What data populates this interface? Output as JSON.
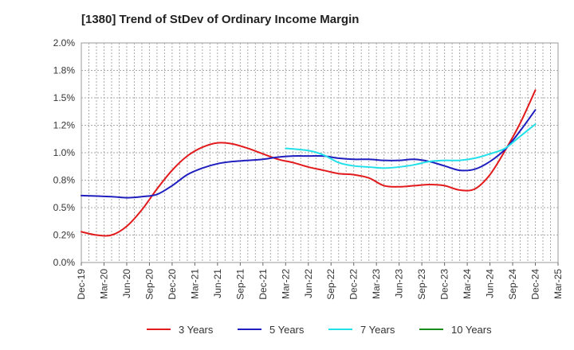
{
  "chart_data": {
    "type": "line",
    "title": "[1380]  Trend of StDev of Ordinary Income Margin",
    "xlabel": "",
    "ylabel": "",
    "x_ticks": [
      "Dec-19",
      "Mar-20",
      "Jun-20",
      "Sep-20",
      "Dec-20",
      "Mar-21",
      "Jun-21",
      "Sep-21",
      "Dec-21",
      "Mar-22",
      "Jun-22",
      "Sep-22",
      "Dec-22",
      "Mar-23",
      "Jun-23",
      "Sep-23",
      "Dec-23",
      "Mar-24",
      "Jun-24",
      "Sep-24",
      "Dec-24",
      "Mar-25"
    ],
    "y_ticks": [
      "0.0%",
      "0.2%",
      "0.5%",
      "0.8%",
      "1.0%",
      "1.2%",
      "1.5%",
      "1.8%",
      "2.0%"
    ],
    "ylim": [
      0,
      2.0
    ],
    "grid": true,
    "legend_position": "bottom",
    "series": [
      {
        "name": "3 Years",
        "color": "#e31a1c",
        "points": [
          [
            "Dec-19",
            0.28
          ],
          [
            "Feb-20",
            0.25
          ],
          [
            "Apr-20",
            0.25
          ],
          [
            "Jun-20",
            0.33
          ],
          [
            "Aug-20",
            0.48
          ],
          [
            "Oct-20",
            0.67
          ],
          [
            "Dec-20",
            0.84
          ],
          [
            "Feb-21",
            0.97
          ],
          [
            "Apr-21",
            1.05
          ],
          [
            "Jun-21",
            1.09
          ],
          [
            "Aug-21",
            1.08
          ],
          [
            "Oct-21",
            1.04
          ],
          [
            "Dec-21",
            0.99
          ],
          [
            "Feb-22",
            0.94
          ],
          [
            "Apr-22",
            0.91
          ],
          [
            "Jun-22",
            0.87
          ],
          [
            "Aug-22",
            0.84
          ],
          [
            "Oct-22",
            0.81
          ],
          [
            "Dec-22",
            0.8
          ],
          [
            "Feb-23",
            0.77
          ],
          [
            "Apr-23",
            0.7
          ],
          [
            "Jun-23",
            0.69
          ],
          [
            "Aug-23",
            0.7
          ],
          [
            "Oct-23",
            0.71
          ],
          [
            "Dec-23",
            0.7
          ],
          [
            "Feb-24",
            0.66
          ],
          [
            "Apr-24",
            0.67
          ],
          [
            "Jun-24",
            0.8
          ],
          [
            "Aug-24",
            1.02
          ],
          [
            "Oct-24",
            1.27
          ],
          [
            "Dec-24",
            1.57
          ]
        ]
      },
      {
        "name": "5 Years",
        "color": "#1f1fbf",
        "points": [
          [
            "Dec-19",
            0.61
          ],
          [
            "Apr-20",
            0.6
          ],
          [
            "Jun-20",
            0.59
          ],
          [
            "Aug-20",
            0.6
          ],
          [
            "Oct-20",
            0.62
          ],
          [
            "Dec-20",
            0.7
          ],
          [
            "Feb-21",
            0.8
          ],
          [
            "Apr-21",
            0.86
          ],
          [
            "Jun-21",
            0.9
          ],
          [
            "Aug-21",
            0.92
          ],
          [
            "Oct-21",
            0.93
          ],
          [
            "Dec-21",
            0.94
          ],
          [
            "Feb-22",
            0.96
          ],
          [
            "Apr-22",
            0.97
          ],
          [
            "Jun-22",
            0.97
          ],
          [
            "Aug-22",
            0.97
          ],
          [
            "Oct-22",
            0.95
          ],
          [
            "Dec-22",
            0.94
          ],
          [
            "Feb-23",
            0.94
          ],
          [
            "Apr-23",
            0.93
          ],
          [
            "Jun-23",
            0.93
          ],
          [
            "Aug-23",
            0.94
          ],
          [
            "Oct-23",
            0.92
          ],
          [
            "Dec-23",
            0.88
          ],
          [
            "Feb-24",
            0.84
          ],
          [
            "Apr-24",
            0.85
          ],
          [
            "Jun-24",
            0.92
          ],
          [
            "Aug-24",
            1.03
          ],
          [
            "Oct-24",
            1.2
          ],
          [
            "Dec-24",
            1.39
          ]
        ]
      },
      {
        "name": "7 Years",
        "color": "#22e0ea",
        "points": [
          [
            "Mar-22",
            1.04
          ],
          [
            "Jun-22",
            1.02
          ],
          [
            "Aug-22",
            0.98
          ],
          [
            "Oct-22",
            0.91
          ],
          [
            "Dec-22",
            0.88
          ],
          [
            "Feb-23",
            0.87
          ],
          [
            "Apr-23",
            0.86
          ],
          [
            "Jun-23",
            0.87
          ],
          [
            "Aug-23",
            0.89
          ],
          [
            "Oct-23",
            0.92
          ],
          [
            "Dec-23",
            0.93
          ],
          [
            "Feb-24",
            0.93
          ],
          [
            "Apr-24",
            0.95
          ],
          [
            "Jun-24",
            0.99
          ],
          [
            "Aug-24",
            1.04
          ],
          [
            "Oct-24",
            1.15
          ],
          [
            "Dec-24",
            1.26
          ]
        ]
      },
      {
        "name": "10 Years",
        "color": "#1a8c1a",
        "points": []
      }
    ]
  }
}
